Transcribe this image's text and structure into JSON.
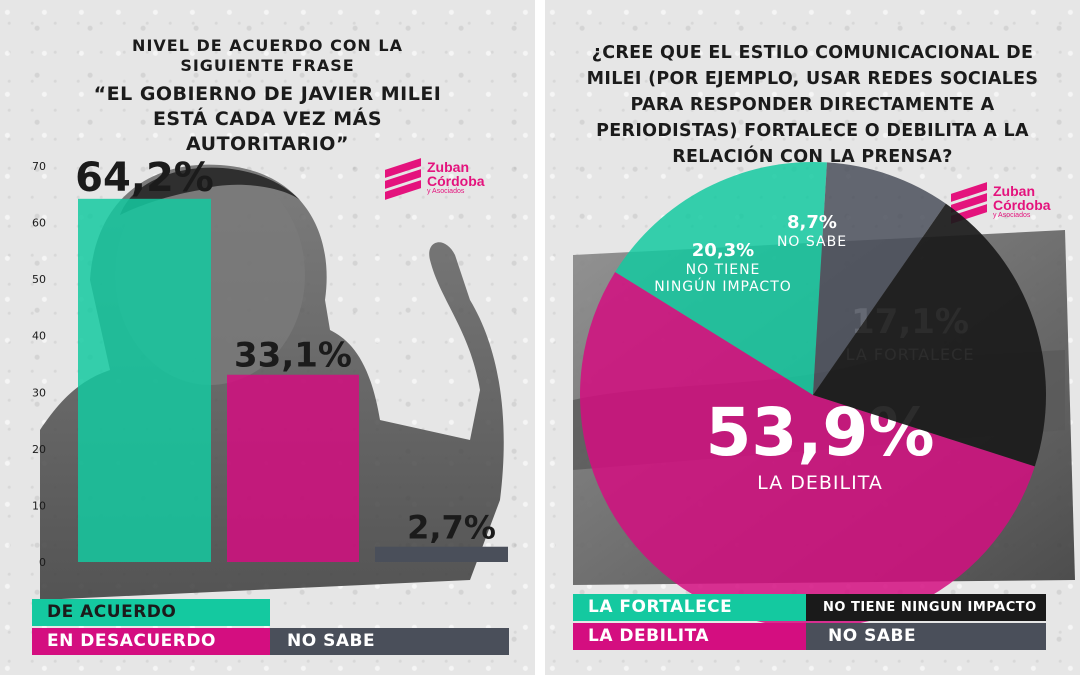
{
  "colors": {
    "acuerdo": "#14c9a0",
    "desacuerdo": "#d40e80",
    "no_sabe": "#4a4f5a",
    "no_impacto": "#1a1a1a",
    "brand": "#e4137d"
  },
  "left": {
    "title_line1": "NIVEL DE ACUERDO CON LA SIGUIENTE FRASE",
    "title_line2": "“EL GOBIERNO DE JAVIER MILEI ESTÁ CADA VEZ MÁS AUTORITARIO”",
    "logo": {
      "name": "Zuban Córdoba",
      "sub": "y Asociados",
      "icon": "zc-stripes-logo"
    },
    "legend": [
      {
        "label": "DE ACUERDO",
        "color": "#14c9a0"
      },
      {
        "label": "EN DESACUERDO",
        "color": "#d40e80"
      },
      {
        "label": "NO SABE",
        "color": "#4a4f5a"
      }
    ]
  },
  "right": {
    "title": "¿CREE QUE EL ESTILO COMUNICACIONAL DE MILEI (POR EJEMPLO, USAR REDES SOCIALES PARA RESPONDER DIRECTAMENTE A PERIODISTAS) FORTALECE O DEBILITA A LA RELACIÓN CON LA PRENSA?",
    "logo": {
      "name": "Zuban Córdoba",
      "sub": "y Asociados",
      "icon": "zc-stripes-logo"
    },
    "legend": [
      {
        "label": "LA FORTALECE",
        "color": "#14c9a0"
      },
      {
        "label": "NO TIENE NINGUN IMPACTO",
        "color": "#1a1a1a"
      },
      {
        "label": "LA DEBILITA",
        "color": "#d40e80"
      },
      {
        "label": "NO SABE",
        "color": "#4a4f5a"
      }
    ]
  },
  "chart_data": [
    {
      "type": "bar",
      "categories": [
        "DE ACUERDO",
        "EN DESACUERDO",
        "NO SABE"
      ],
      "values": [
        64.2,
        33.1,
        2.7
      ],
      "value_labels": [
        "64,2%",
        "33,1%",
        "2,7%"
      ],
      "colors": [
        "#14c9a0",
        "#d40e80",
        "#4a4f5a"
      ],
      "ylim": [
        0,
        70
      ],
      "yticks": [
        0,
        10,
        20,
        30,
        40,
        50,
        60,
        70
      ],
      "legend": "bottom"
    },
    {
      "type": "pie",
      "categories": [
        "LA DEBILITA",
        "LA FORTALECE",
        "NO SABE",
        "NO TIENE NINGÚN IMPACTO"
      ],
      "values": [
        53.9,
        17.1,
        8.7,
        20.3
      ],
      "value_labels": [
        "53,9%",
        "17,1%",
        "8,7%",
        "20,3%"
      ],
      "slice_labels": [
        "LA DEBILITA",
        "LA FORTALECE",
        "NO SABE",
        "NO TIENE NINGÚN IMPACTO"
      ],
      "slice_label_lines": [
        [
          "LA DEBILITA"
        ],
        [
          "LA FORTALECE"
        ],
        [
          "NO SABE"
        ],
        [
          "NO TIENE",
          "NINGÚN IMPACTO"
        ]
      ],
      "colors": [
        "#d40e80",
        "#14c9a0",
        "#4a4f5a",
        "#1a1a1a"
      ],
      "legend": "bottom"
    }
  ]
}
